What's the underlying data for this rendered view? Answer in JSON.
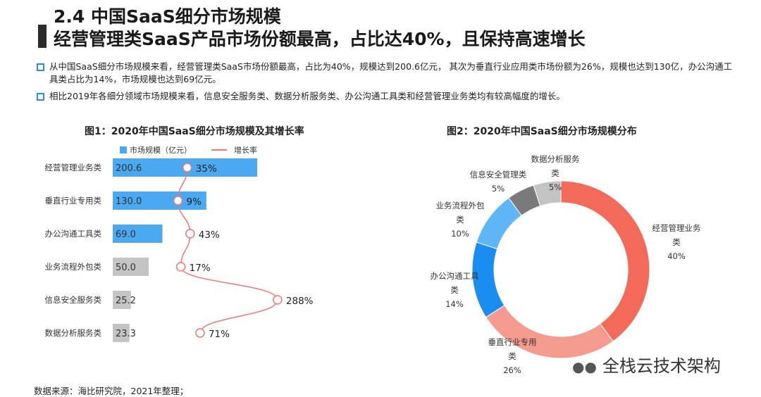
{
  "header": {
    "title": "2.4 中国SaaS细分市场规模",
    "subtitle": "经营管理类SaaS产品市场份额最高，占比达40%，且保持高速增长"
  },
  "bullets": [
    "从中国SaaS细分市场规模来看，经营管理类SaaS市场份额最高，占比为40%，规模达到200.6亿元， 其次为垂直行业应用类市场份额为26%，规模也达到130亿，办公沟通工具类占比为14%，市场规模也达到69亿元。",
    "相比2019年各细分领域市场规模来看，信息安全服务类、数据分析服务类、办公沟通工具类和经营管理业务类均有较高幅度的增长。"
  ],
  "source": "数据来源：海比研究院，2021年整理；",
  "brand": "全栈云技术架构",
  "chart_data": [
    {
      "type": "bar",
      "orientation": "horizontal",
      "title": "图1：2020年中国SaaS细分市场规模及其增长率",
      "categories": [
        "经营管理业务类",
        "垂直行业专用类",
        "办公沟通工具类",
        "业务流程外包类",
        "信息安全服务类",
        "数据分析服务类"
      ],
      "legend_position": "top",
      "series": [
        {
          "name": "市场规模（亿元）",
          "kind": "bar",
          "color": "#4aa9f0",
          "values": [
            200.6,
            130.0,
            69.0,
            50.0,
            25.2,
            23.3
          ],
          "labels": [
            "200.6",
            "130.0",
            "69.0",
            "50.0",
            "25.2",
            "23.3"
          ]
        },
        {
          "name": "增长率",
          "kind": "line",
          "color": "#f07670",
          "values": [
            35,
            9,
            43,
            17,
            288,
            71
          ],
          "labels": [
            "35%",
            "9%",
            "43%",
            "17%",
            "288%",
            "71%"
          ]
        }
      ],
      "grid": false
    },
    {
      "type": "pie",
      "donut": true,
      "title": "图2：2020年中国SaaS细分市场规模分布",
      "slices": [
        {
          "name": "经营管理业务类",
          "label": [
            "经营管理业务",
            "类"
          ],
          "pct_label": "40%",
          "value": 40,
          "color": "#f36a5a"
        },
        {
          "name": "垂直行业专用类",
          "label": [
            "垂直行业专用",
            "类"
          ],
          "pct_label": "26%",
          "value": 26,
          "color": "#f59a8f"
        },
        {
          "name": "办公沟通工具类",
          "label": [
            "办公沟通工具",
            "类"
          ],
          "pct_label": "14%",
          "value": 14,
          "color": "#1a8ef0"
        },
        {
          "name": "业务流程外包类",
          "label": [
            "业务流程外包",
            "类"
          ],
          "pct_label": "10%",
          "value": 10,
          "color": "#5eb6f6"
        },
        {
          "name": "信息安全管理类",
          "label": [
            "信息安全管理类"
          ],
          "pct_label": "5%",
          "value": 5,
          "color": "#7a7a7a"
        },
        {
          "name": "数据分析服务类",
          "label": [
            "数据分析服务",
            "类"
          ],
          "pct_label": "5%",
          "value": 5,
          "color": "#c3c3c3"
        }
      ]
    }
  ]
}
